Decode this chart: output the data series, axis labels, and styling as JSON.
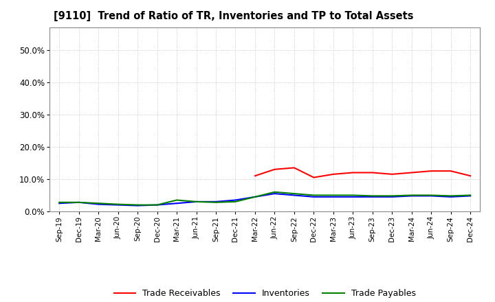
{
  "title": "[9110]  Trend of Ratio of TR, Inventories and TP to Total Assets",
  "x_labels": [
    "Sep-19",
    "Dec-19",
    "Mar-20",
    "Jun-20",
    "Sep-20",
    "Dec-20",
    "Mar-21",
    "Jun-21",
    "Sep-21",
    "Dec-21",
    "Mar-22",
    "Jun-22",
    "Sep-22",
    "Dec-22",
    "Mar-23",
    "Jun-23",
    "Sep-23",
    "Dec-23",
    "Mar-24",
    "Jun-24",
    "Sep-24",
    "Dec-24"
  ],
  "trade_receivables": [
    null,
    null,
    null,
    null,
    null,
    null,
    null,
    null,
    null,
    null,
    11.0,
    13.0,
    13.5,
    10.5,
    11.5,
    12.0,
    12.0,
    11.5,
    12.0,
    12.5,
    12.5,
    11.0
  ],
  "inventories": [
    2.5,
    2.8,
    2.2,
    2.0,
    1.8,
    2.0,
    2.5,
    3.0,
    3.0,
    3.5,
    4.5,
    5.5,
    5.0,
    4.5,
    4.5,
    4.5,
    4.5,
    4.5,
    4.8,
    4.8,
    4.5,
    4.8
  ],
  "trade_payables": [
    2.8,
    2.8,
    2.5,
    2.2,
    2.0,
    2.0,
    3.5,
    3.0,
    2.8,
    3.0,
    4.5,
    6.0,
    5.5,
    5.0,
    5.0,
    5.0,
    4.8,
    4.8,
    5.0,
    5.0,
    4.8,
    5.0
  ],
  "colors": {
    "trade_receivables": "#FF0000",
    "inventories": "#0000FF",
    "trade_payables": "#008000"
  },
  "ylim": [
    0,
    57
  ],
  "yticks": [
    0,
    10,
    20,
    30,
    40,
    50
  ],
  "ytick_labels": [
    "0.0%",
    "10.0%",
    "20.0%",
    "30.0%",
    "40.0%",
    "50.0%"
  ],
  "background_color": "#FFFFFF",
  "grid_color": "#BBBBBB",
  "legend_labels": [
    "Trade Receivables",
    "Inventories",
    "Trade Payables"
  ]
}
